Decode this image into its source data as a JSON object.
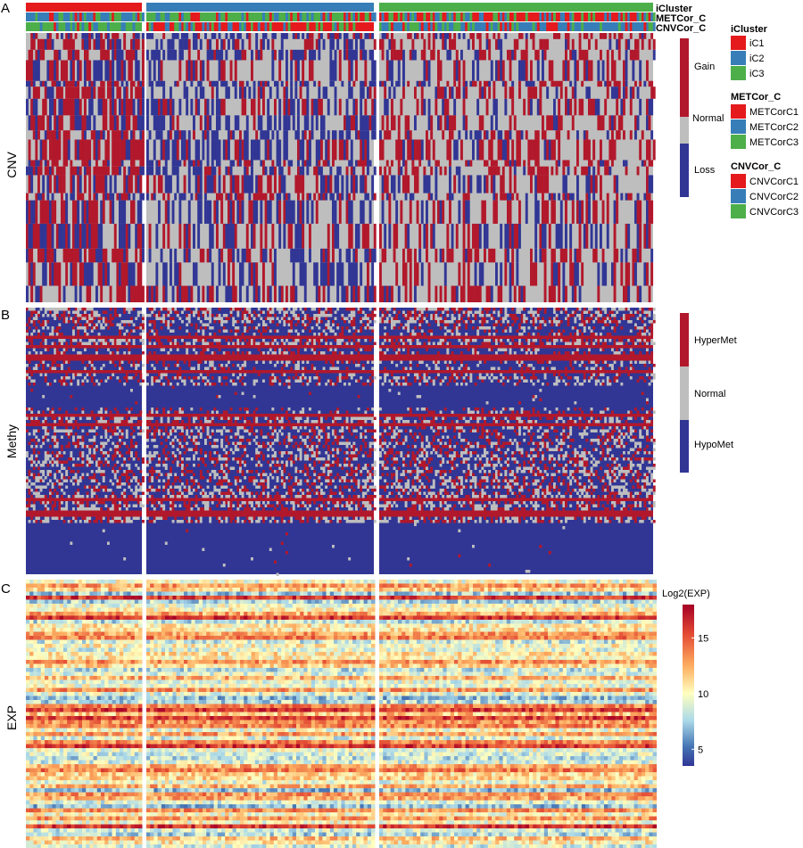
{
  "figure": {
    "panel_labels": [
      "A",
      "B",
      "C"
    ],
    "row_titles": [
      "CNV",
      "Methy",
      "EXP"
    ]
  },
  "annotations": {
    "tracks": [
      "iCluster",
      "METCor_C",
      "CNVCor_C"
    ],
    "groups": [
      "iC1",
      "iC2",
      "iC3"
    ]
  },
  "legends": {
    "cluster_legends": [
      {
        "title": "iCluster",
        "items": [
          {
            "label": "iC1",
            "color": "#e41a1c"
          },
          {
            "label": "iC2",
            "color": "#377eb8"
          },
          {
            "label": "iC3",
            "color": "#4daf4a"
          }
        ]
      },
      {
        "title": "METCor_C",
        "items": [
          {
            "label": "METCorC1",
            "color": "#e41a1c"
          },
          {
            "label": "METCorC2",
            "color": "#377eb8"
          },
          {
            "label": "METCorC3",
            "color": "#4daf4a"
          }
        ]
      },
      {
        "title": "CNVCor_C",
        "items": [
          {
            "label": "CNVCorC1",
            "color": "#e41a1c"
          },
          {
            "label": "CNVCorC2",
            "color": "#377eb8"
          },
          {
            "label": "CNVCorC3",
            "color": "#4daf4a"
          }
        ]
      }
    ],
    "cnv": {
      "labels": [
        "Gain",
        "Normal",
        "Loss"
      ],
      "colors": [
        "#b2182b",
        "#bebebe",
        "#313695"
      ]
    },
    "methy": {
      "labels": [
        "HyperMet",
        "Normal",
        "HypoMet"
      ],
      "colors": [
        "#b2182b",
        "#bebebe",
        "#313695"
      ]
    },
    "exp": {
      "title": "Log2(EXP)",
      "ticks": [
        "15",
        "10",
        "5"
      ],
      "tick_values": [
        15,
        10,
        5
      ],
      "range": [
        3.5,
        18
      ]
    }
  },
  "chart_data": [
    {
      "type": "heatmap",
      "title": "CNV",
      "columns": "samples split into iC1 / iC2 / iC3",
      "value_labels": [
        "Gain",
        "Normal",
        "Loss"
      ],
      "group_sample_fraction": [
        0.19,
        0.36,
        0.45
      ]
    },
    {
      "type": "heatmap",
      "title": "Methy",
      "columns": "samples split into iC1 / iC2 / iC3",
      "value_labels": [
        "HyperMet",
        "Normal",
        "HypoMet"
      ]
    },
    {
      "type": "heatmap",
      "title": "EXP",
      "columns": "samples split into iC1 / iC2 / iC3",
      "colorbar_label": "Log2(EXP)",
      "colorbar_range": [
        3.5,
        18
      ]
    }
  ]
}
